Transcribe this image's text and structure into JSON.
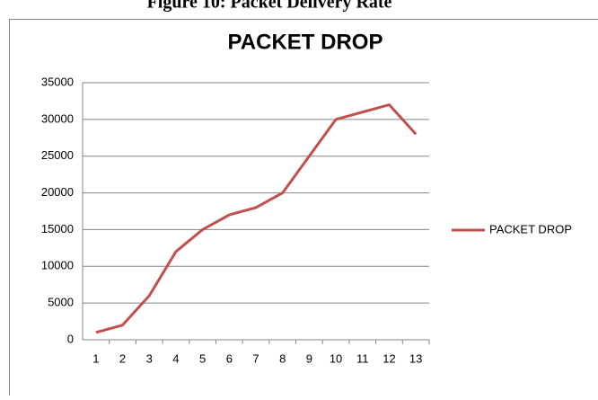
{
  "caption": "Figure 10: Packet Delivery Rate",
  "chart_data": {
    "type": "line",
    "title": "PACKET DROP",
    "categories": [
      "1",
      "2",
      "3",
      "4",
      "5",
      "6",
      "7",
      "8",
      "9",
      "10",
      "11",
      "12",
      "13"
    ],
    "series": [
      {
        "name": "PACKET DROP",
        "color": "#c0504d",
        "values": [
          1000,
          2000,
          6000,
          12000,
          15000,
          17000,
          18000,
          20000,
          25000,
          30000,
          31000,
          32000,
          28000
        ]
      }
    ],
    "ylim": [
      0,
      35000
    ],
    "yticks": [
      0,
      5000,
      10000,
      15000,
      20000,
      25000,
      30000,
      35000
    ],
    "grid": true,
    "legend": "right"
  }
}
